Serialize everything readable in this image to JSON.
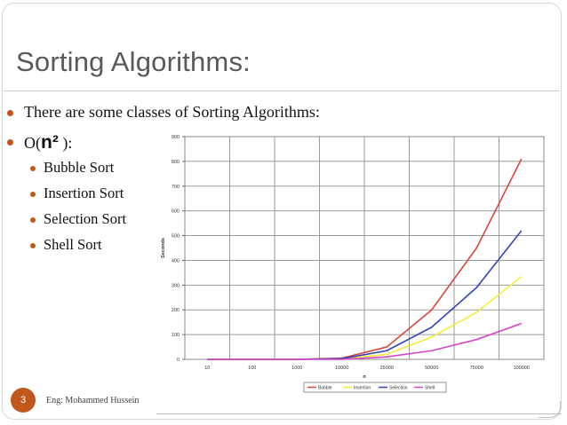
{
  "slide": {
    "title": "Sorting Algorithms:",
    "bullets": {
      "intro": "There are some classes of Sorting Algorithms:",
      "on2_prefix": "O(",
      "on2_n": "n²",
      "on2_suffix": " ):",
      "items": [
        "Bubble Sort",
        "Insertion Sort",
        "Selection Sort",
        "Shell Sort"
      ]
    },
    "footer": {
      "page_number": "3",
      "author": "Eng: Mohammed Hussein"
    },
    "colors": {
      "accent": "#c0571d",
      "title": "#595959"
    }
  },
  "chart_data": {
    "type": "line",
    "categories": [
      "10",
      "100",
      "1000",
      "10000",
      "25000",
      "50000",
      "75000",
      "100000"
    ],
    "ylim": [
      0,
      900
    ],
    "yticks": [
      "0",
      "100",
      "200",
      "300",
      "400",
      "500",
      "600",
      "700",
      "800",
      "900"
    ],
    "ylabel": "Seconds",
    "xlabel": "n",
    "grid": true,
    "legend": "bottom",
    "series": [
      {
        "name": "Bubble",
        "color": "#d9463f",
        "values": [
          0,
          0,
          0,
          5,
          50,
          200,
          450,
          810
        ]
      },
      {
        "name": "Insertion",
        "color": "#f2ec38",
        "values": [
          0,
          0,
          0,
          2,
          20,
          90,
          190,
          335
        ]
      },
      {
        "name": "Selection",
        "color": "#3242b8",
        "values": [
          0,
          0,
          0,
          3,
          35,
          130,
          290,
          520
        ]
      },
      {
        "name": "Shell",
        "color": "#d646c9",
        "values": [
          0,
          0,
          0,
          0,
          10,
          35,
          80,
          145
        ]
      }
    ]
  }
}
